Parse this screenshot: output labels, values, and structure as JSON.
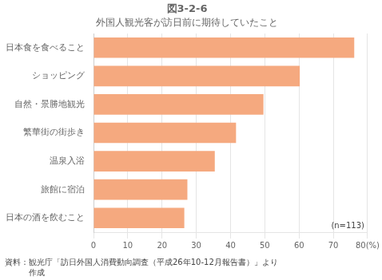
{
  "chart_data": {
    "type": "bar",
    "orientation": "horizontal",
    "title": "図3-2-6",
    "subtitle": "外国人観光客が訪日前に期待していたこと",
    "categories": [
      "日本食を食べること",
      "ショッピング",
      "自然・景勝地観光",
      "繁華街の街歩き",
      "温泉入浴",
      "旅館に宿泊",
      "日本の酒を飲むこと"
    ],
    "values": [
      76.1,
      60.2,
      49.6,
      41.6,
      35.4,
      27.4,
      26.5
    ],
    "color": "#F5A97F",
    "xlim": [
      0,
      80
    ],
    "xticks": [
      0,
      10,
      20,
      30,
      40,
      50,
      60,
      70,
      {
        "value": 80,
        "label": "80(%)"
      }
    ],
    "grid": true,
    "annotation": "(n=113)",
    "footer": [
      "資料：観光庁「訪日外国人消費動向調査（平成26年10-12月報告書）」より",
      "　　　作成"
    ]
  }
}
